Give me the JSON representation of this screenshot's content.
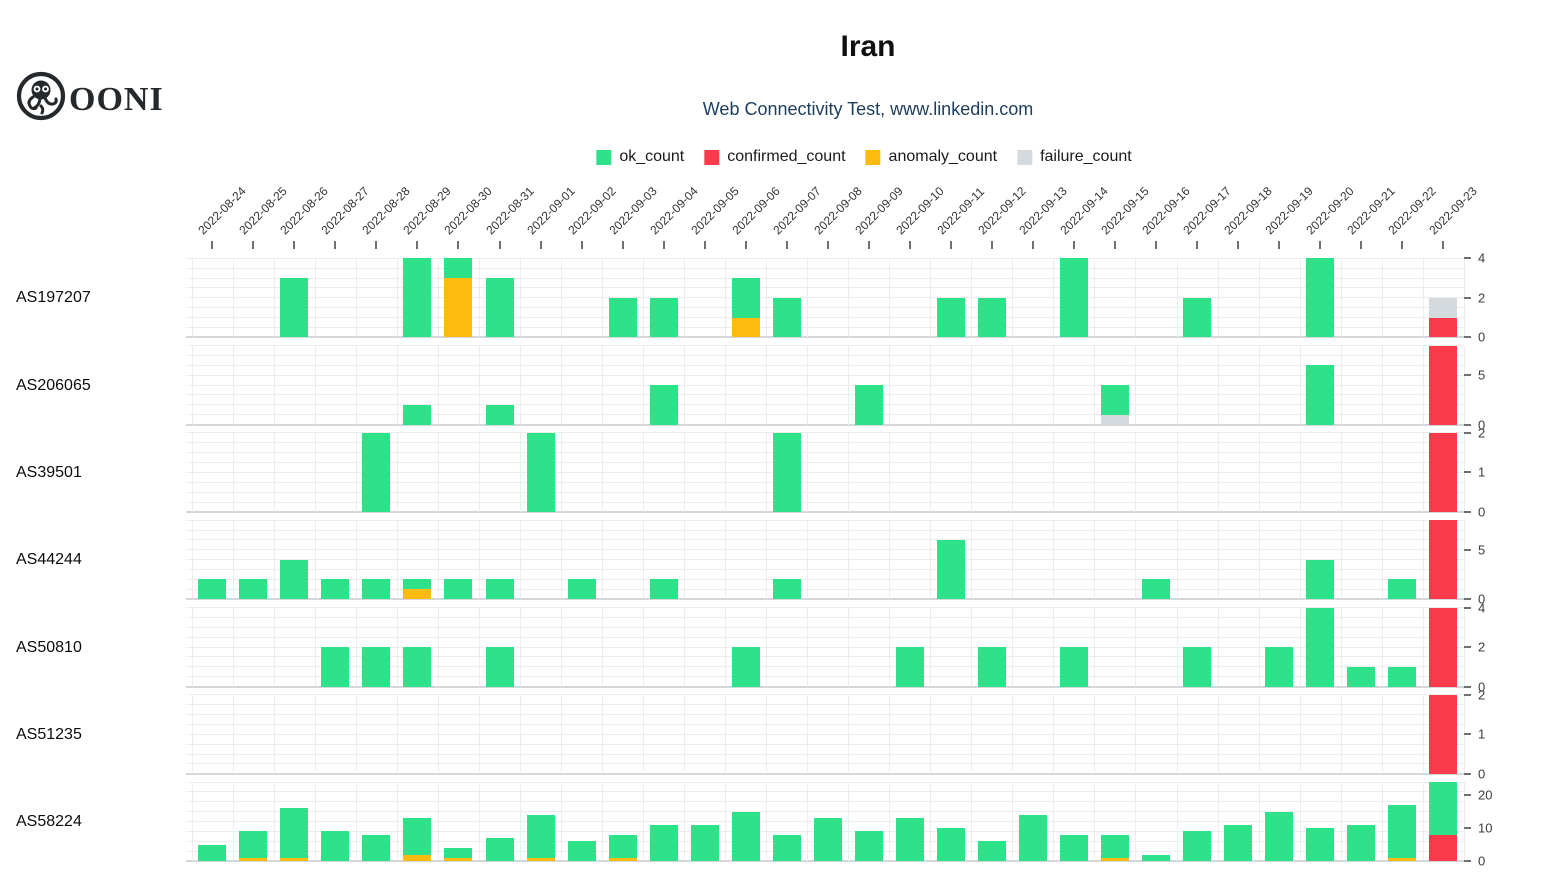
{
  "header": {
    "title": "Iran",
    "subtitle": "Web Connectivity Test, www.linkedin.com",
    "brand": "OONI"
  },
  "chart_data": {
    "type": "bar",
    "stacked": true,
    "grid": true,
    "legend_position": "top-center",
    "x_dates": [
      "2022-08-24",
      "2022-08-25",
      "2022-08-26",
      "2022-08-27",
      "2022-08-28",
      "2022-08-29",
      "2022-08-30",
      "2022-08-31",
      "2022-09-01",
      "2022-09-02",
      "2022-09-03",
      "2022-09-04",
      "2022-09-05",
      "2022-09-06",
      "2022-09-07",
      "2022-09-08",
      "2022-09-09",
      "2022-09-10",
      "2022-09-11",
      "2022-09-12",
      "2022-09-13",
      "2022-09-14",
      "2022-09-15",
      "2022-09-16",
      "2022-09-17",
      "2022-09-18",
      "2022-09-19",
      "2022-09-20",
      "2022-09-21",
      "2022-09-22",
      "2022-09-23"
    ],
    "legend": [
      {
        "label": "ok_count",
        "color": "#2ee289"
      },
      {
        "label": "confirmed_count",
        "color": "#f93a4b"
      },
      {
        "label": "anomaly_count",
        "color": "#fdba0f"
      },
      {
        "label": "failure_count",
        "color": "#d4dade"
      }
    ],
    "series_colors": {
      "ok": "#2ee289",
      "confirmed": "#f93a4b",
      "anomaly": "#fdba0f",
      "failure": "#d4dade"
    },
    "stack_order_bottom_to_top": [
      "confirmed",
      "anomaly",
      "failure",
      "ok"
    ],
    "rows": [
      {
        "as_name": "AS197207",
        "ymax": 4,
        "yticks": [
          0,
          2,
          4
        ],
        "bars": [
          {
            "date": "2022-08-26",
            "ok": 3
          },
          {
            "date": "2022-08-29",
            "ok": 4
          },
          {
            "date": "2022-08-30",
            "anomaly": 3,
            "ok": 1
          },
          {
            "date": "2022-08-31",
            "ok": 3
          },
          {
            "date": "2022-09-03",
            "ok": 2
          },
          {
            "date": "2022-09-04",
            "ok": 2
          },
          {
            "date": "2022-09-06",
            "anomaly": 1,
            "ok": 2
          },
          {
            "date": "2022-09-07",
            "ok": 2
          },
          {
            "date": "2022-09-11",
            "ok": 2
          },
          {
            "date": "2022-09-12",
            "ok": 2
          },
          {
            "date": "2022-09-14",
            "ok": 4
          },
          {
            "date": "2022-09-17",
            "ok": 2
          },
          {
            "date": "2022-09-20",
            "ok": 4
          },
          {
            "date": "2022-09-23",
            "confirmed": 1,
            "failure": 1
          }
        ]
      },
      {
        "as_name": "AS206065",
        "ymax": 8,
        "yticks": [
          0,
          5
        ],
        "bars": [
          {
            "date": "2022-08-29",
            "ok": 2
          },
          {
            "date": "2022-08-31",
            "ok": 2
          },
          {
            "date": "2022-09-04",
            "ok": 4
          },
          {
            "date": "2022-09-09",
            "ok": 4
          },
          {
            "date": "2022-09-15",
            "failure": 1,
            "ok": 3
          },
          {
            "date": "2022-09-20",
            "ok": 6
          },
          {
            "date": "2022-09-23",
            "confirmed": 8
          }
        ]
      },
      {
        "as_name": "AS39501",
        "ymax": 2,
        "yticks": [
          0,
          1,
          2
        ],
        "bars": [
          {
            "date": "2022-08-28",
            "ok": 2
          },
          {
            "date": "2022-09-01",
            "ok": 2
          },
          {
            "date": "2022-09-07",
            "ok": 2
          },
          {
            "date": "2022-09-23",
            "confirmed": 2
          }
        ]
      },
      {
        "as_name": "AS44244",
        "ymax": 8,
        "yticks": [
          0,
          5
        ],
        "bars": [
          {
            "date": "2022-08-24",
            "ok": 2
          },
          {
            "date": "2022-08-25",
            "ok": 2
          },
          {
            "date": "2022-08-26",
            "ok": 4
          },
          {
            "date": "2022-08-27",
            "ok": 2
          },
          {
            "date": "2022-08-28",
            "ok": 2
          },
          {
            "date": "2022-08-29",
            "anomaly": 1,
            "ok": 1
          },
          {
            "date": "2022-08-30",
            "ok": 2
          },
          {
            "date": "2022-08-31",
            "ok": 2
          },
          {
            "date": "2022-09-02",
            "ok": 2
          },
          {
            "date": "2022-09-04",
            "ok": 2
          },
          {
            "date": "2022-09-07",
            "ok": 2
          },
          {
            "date": "2022-09-11",
            "ok": 6
          },
          {
            "date": "2022-09-16",
            "ok": 2
          },
          {
            "date": "2022-09-20",
            "ok": 4
          },
          {
            "date": "2022-09-22",
            "ok": 2
          },
          {
            "date": "2022-09-23",
            "confirmed": 8
          }
        ]
      },
      {
        "as_name": "AS50810",
        "ymax": 4,
        "yticks": [
          0,
          2,
          4
        ],
        "bars": [
          {
            "date": "2022-08-27",
            "ok": 2
          },
          {
            "date": "2022-08-28",
            "ok": 2
          },
          {
            "date": "2022-08-29",
            "ok": 2
          },
          {
            "date": "2022-08-31",
            "ok": 2
          },
          {
            "date": "2022-09-06",
            "ok": 2
          },
          {
            "date": "2022-09-10",
            "ok": 2
          },
          {
            "date": "2022-09-12",
            "ok": 2
          },
          {
            "date": "2022-09-14",
            "ok": 2
          },
          {
            "date": "2022-09-17",
            "ok": 2
          },
          {
            "date": "2022-09-19",
            "ok": 2
          },
          {
            "date": "2022-09-20",
            "ok": 4
          },
          {
            "date": "2022-09-21",
            "ok": 1
          },
          {
            "date": "2022-09-22",
            "ok": 1
          },
          {
            "date": "2022-09-23",
            "confirmed": 4
          }
        ]
      },
      {
        "as_name": "AS51235",
        "ymax": 2,
        "yticks": [
          0,
          1,
          2
        ],
        "bars": [
          {
            "date": "2022-09-23",
            "confirmed": 2
          }
        ]
      },
      {
        "as_name": "AS58224",
        "ymax": 24,
        "yticks": [
          0,
          10,
          20
        ],
        "bars": [
          {
            "date": "2022-08-24",
            "ok": 5
          },
          {
            "date": "2022-08-25",
            "anomaly": 1,
            "ok": 8
          },
          {
            "date": "2022-08-26",
            "anomaly": 1,
            "ok": 15
          },
          {
            "date": "2022-08-27",
            "ok": 9
          },
          {
            "date": "2022-08-28",
            "ok": 8
          },
          {
            "date": "2022-08-29",
            "anomaly": 2,
            "ok": 11
          },
          {
            "date": "2022-08-30",
            "anomaly": 1,
            "ok": 3
          },
          {
            "date": "2022-08-31",
            "ok": 7
          },
          {
            "date": "2022-09-01",
            "anomaly": 1,
            "ok": 13
          },
          {
            "date": "2022-09-02",
            "ok": 6
          },
          {
            "date": "2022-09-03",
            "anomaly": 1,
            "ok": 7
          },
          {
            "date": "2022-09-04",
            "ok": 11
          },
          {
            "date": "2022-09-05",
            "ok": 11
          },
          {
            "date": "2022-09-06",
            "ok": 15
          },
          {
            "date": "2022-09-07",
            "ok": 8
          },
          {
            "date": "2022-09-08",
            "ok": 13
          },
          {
            "date": "2022-09-09",
            "ok": 9
          },
          {
            "date": "2022-09-10",
            "ok": 13
          },
          {
            "date": "2022-09-11",
            "ok": 10
          },
          {
            "date": "2022-09-12",
            "ok": 6
          },
          {
            "date": "2022-09-13",
            "ok": 14
          },
          {
            "date": "2022-09-14",
            "ok": 8
          },
          {
            "date": "2022-09-15",
            "anomaly": 1,
            "ok": 7
          },
          {
            "date": "2022-09-16",
            "ok": 2
          },
          {
            "date": "2022-09-17",
            "ok": 9
          },
          {
            "date": "2022-09-18",
            "ok": 11
          },
          {
            "date": "2022-09-19",
            "ok": 15
          },
          {
            "date": "2022-09-20",
            "ok": 10
          },
          {
            "date": "2022-09-21",
            "ok": 11
          },
          {
            "date": "2022-09-22",
            "anomaly": 1,
            "ok": 16
          },
          {
            "date": "2022-09-23",
            "confirmed": 8,
            "ok": 16
          }
        ]
      }
    ]
  }
}
